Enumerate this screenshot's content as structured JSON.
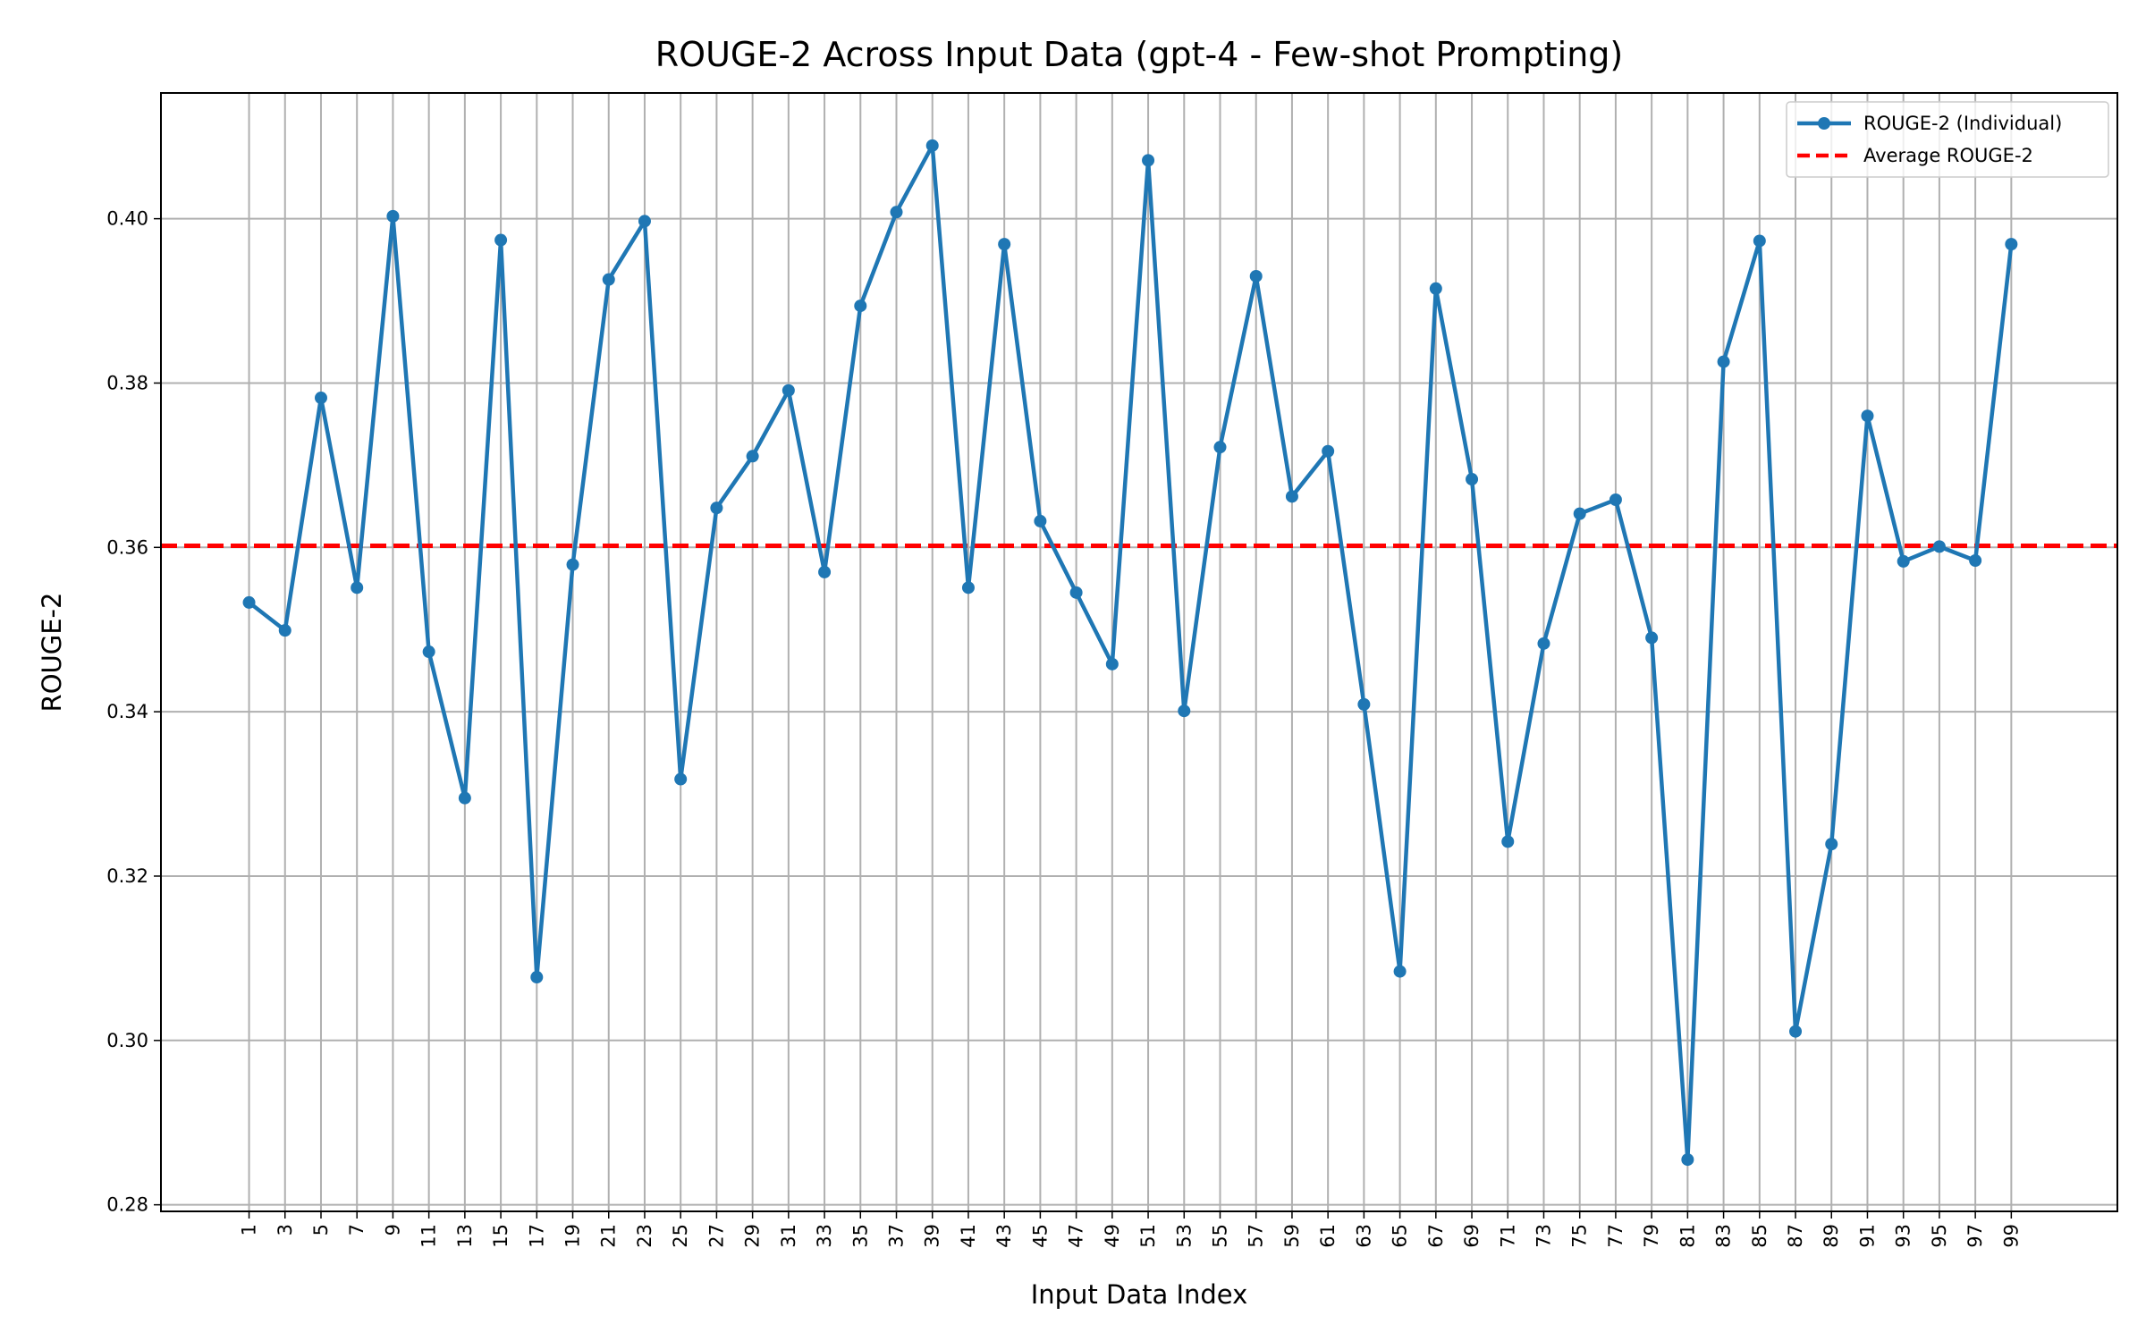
{
  "chart_data": {
    "type": "line",
    "title": "ROUGE-2 Across Input Data (gpt-4 - Few-shot Prompting)",
    "xlabel": "Input Data Index",
    "ylabel": "ROUGE-2",
    "x_ticks": [
      1,
      3,
      5,
      7,
      9,
      11,
      13,
      15,
      17,
      19,
      21,
      23,
      25,
      27,
      29,
      31,
      33,
      35,
      37,
      39,
      41,
      43,
      45,
      47,
      49,
      51,
      53,
      55,
      57,
      59,
      61,
      63,
      65,
      67,
      69,
      71,
      73,
      75,
      77,
      79,
      81,
      83,
      85,
      87,
      89,
      91,
      93,
      95,
      97,
      99
    ],
    "y_ticks": [
      "0.28",
      "0.30",
      "0.32",
      "0.34",
      "0.36",
      "0.38",
      "0.40"
    ],
    "xlim": [
      -3.9,
      104.9
    ],
    "ylim": [
      0.2792,
      0.4153
    ],
    "grid": true,
    "legend_position": "top-right",
    "series": [
      {
        "name": "ROUGE-2 (Individual)",
        "color": "#1f77b4",
        "style": "solid-with-markers",
        "x": [
          1,
          3,
          5,
          7,
          9,
          11,
          13,
          15,
          17,
          19,
          21,
          23,
          25,
          27,
          29,
          31,
          33,
          35,
          37,
          39,
          41,
          43,
          45,
          47,
          49,
          51,
          53,
          55,
          57,
          59,
          61,
          63,
          65,
          67,
          69,
          71,
          73,
          75,
          77,
          79,
          81,
          83,
          85,
          87,
          89,
          91,
          93,
          95,
          97,
          99
        ],
        "values": [
          0.3533,
          0.3499,
          0.3782,
          0.3551,
          0.4003,
          0.3473,
          0.3295,
          0.3974,
          0.3077,
          0.3579,
          0.3926,
          0.3997,
          0.3318,
          0.3648,
          0.3711,
          0.3791,
          0.357,
          0.3894,
          0.4008,
          0.4089,
          0.3551,
          0.3969,
          0.3632,
          0.3545,
          0.3458,
          0.4071,
          0.3401,
          0.3722,
          0.393,
          0.3662,
          0.3717,
          0.3409,
          0.3084,
          0.3915,
          0.3683,
          0.3242,
          0.3483,
          0.3641,
          0.3658,
          0.349,
          0.2855,
          0.3826,
          0.3973,
          0.3011,
          0.3239,
          0.376,
          0.3583,
          0.3601,
          0.3584,
          0.3969
        ]
      },
      {
        "name": "Average ROUGE-2",
        "color": "#ff0000",
        "style": "dashed",
        "value": 0.3602
      }
    ]
  }
}
